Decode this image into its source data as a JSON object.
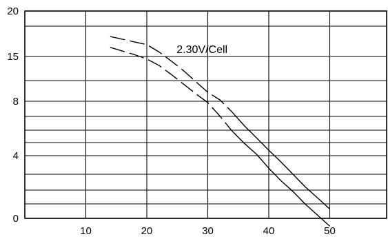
{
  "chart_data": {
    "type": "line",
    "title": "",
    "xlabel": "",
    "ylabel": "",
    "x_ticks": [
      10,
      20,
      30,
      40,
      50
    ],
    "y_ticks": [
      "0",
      "4",
      "8",
      "15",
      "20"
    ],
    "annotations": [
      {
        "text": "2.30V/Cell",
        "x": 25,
        "y": 16.3
      }
    ],
    "grid": true,
    "series": [
      {
        "style": "dashed",
        "points": [
          [
            14,
            17.2
          ],
          [
            16,
            16.9
          ],
          [
            18,
            16.6
          ],
          [
            20,
            16.3
          ],
          [
            22,
            15.5
          ],
          [
            24,
            14.3
          ],
          [
            26,
            12.8
          ],
          [
            28,
            11.1
          ],
          [
            30,
            9.4
          ],
          [
            32,
            8.2
          ],
          [
            34,
            7.2
          ],
          [
            36,
            6.2
          ],
          [
            38,
            5.3
          ],
          [
            40,
            4.4
          ],
          [
            42,
            3.6
          ],
          [
            44,
            2.8
          ],
          [
            46,
            2.0
          ],
          [
            48,
            1.3
          ],
          [
            50,
            0.6
          ]
        ]
      },
      {
        "style": "dashed",
        "points": [
          [
            14,
            16.0
          ],
          [
            16,
            15.6
          ],
          [
            18,
            15.2
          ],
          [
            20,
            14.6
          ],
          [
            22,
            13.6
          ],
          [
            24,
            12.2
          ],
          [
            26,
            10.7
          ],
          [
            28,
            9.2
          ],
          [
            30,
            7.9
          ],
          [
            32,
            6.9
          ],
          [
            34,
            5.8
          ],
          [
            36,
            4.9
          ],
          [
            38,
            4.1
          ],
          [
            40,
            3.2
          ],
          [
            42,
            2.4
          ],
          [
            44,
            1.7
          ],
          [
            46,
            0.9
          ],
          [
            48,
            0.2
          ],
          [
            50,
            -0.5
          ]
        ]
      }
    ]
  }
}
